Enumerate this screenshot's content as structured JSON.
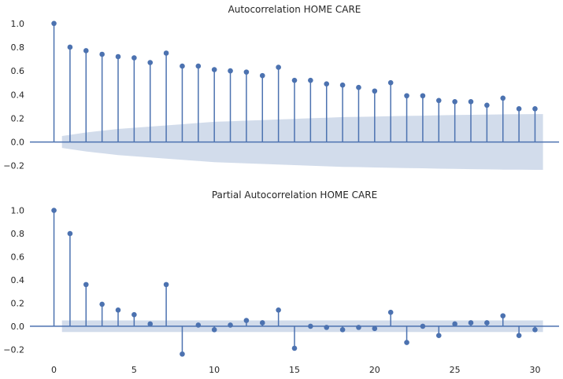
{
  "colors": {
    "accent": "#4c72b0",
    "band": "#c9d3e6",
    "text": "#262626"
  },
  "chart_data": [
    {
      "type": "stem",
      "title": "Autocorrelation HOME CARE",
      "xlim": [
        -1.5,
        31.5
      ],
      "ylim": [
        -0.235,
        1.065
      ],
      "yticks": [
        1.0,
        0.8,
        0.6,
        0.4,
        0.2,
        0.0,
        -0.2
      ],
      "ytick_labels": [
        "1.0",
        "0.8",
        "0.6",
        "0.4",
        "0.2",
        "0.0",
        "−0.2"
      ],
      "lags": [
        0,
        1,
        2,
        3,
        4,
        5,
        6,
        7,
        8,
        9,
        10,
        11,
        12,
        13,
        14,
        15,
        16,
        17,
        18,
        19,
        20,
        21,
        22,
        23,
        24,
        25,
        26,
        27,
        28,
        29,
        30
      ],
      "values": [
        1.0,
        0.8,
        0.77,
        0.74,
        0.72,
        0.71,
        0.67,
        0.75,
        0.64,
        0.64,
        0.61,
        0.6,
        0.59,
        0.56,
        0.63,
        0.52,
        0.52,
        0.49,
        0.48,
        0.46,
        0.43,
        0.5,
        0.39,
        0.39,
        0.35,
        0.34,
        0.34,
        0.31,
        0.37,
        0.28,
        0.28
      ],
      "confidence_band": {
        "lags": [
          0.5,
          1,
          2,
          3,
          4,
          5,
          6,
          7,
          8,
          9,
          10,
          11,
          12,
          13,
          14,
          15,
          16,
          17,
          18,
          19,
          20,
          21,
          22,
          23,
          24,
          25,
          26,
          27,
          28,
          29,
          30,
          30.5
        ],
        "upper": [
          0.05,
          0.06,
          0.08,
          0.095,
          0.11,
          0.12,
          0.13,
          0.14,
          0.15,
          0.16,
          0.17,
          0.175,
          0.18,
          0.185,
          0.19,
          0.195,
          0.2,
          0.205,
          0.21,
          0.212,
          0.215,
          0.218,
          0.22,
          0.222,
          0.225,
          0.227,
          0.229,
          0.231,
          0.233,
          0.234,
          0.235,
          0.235
        ]
      }
    },
    {
      "type": "stem",
      "title": "Partial Autocorrelation HOME CARE",
      "xlim": [
        -1.5,
        31.5
      ],
      "ylim": [
        -0.245,
        1.065
      ],
      "yticks": [
        1.0,
        0.8,
        0.6,
        0.4,
        0.2,
        0.0,
        -0.2
      ],
      "ytick_labels": [
        "1.0",
        "0.8",
        "0.6",
        "0.4",
        "0.2",
        "0.0",
        "−0.2"
      ],
      "xticks": [
        0,
        5,
        10,
        15,
        20,
        25,
        30
      ],
      "xtick_labels": [
        "0",
        "5",
        "10",
        "15",
        "20",
        "25",
        "30"
      ],
      "lags": [
        0,
        1,
        2,
        3,
        4,
        5,
        6,
        7,
        8,
        9,
        10,
        11,
        12,
        13,
        14,
        15,
        16,
        17,
        18,
        19,
        20,
        21,
        22,
        23,
        24,
        25,
        26,
        27,
        28,
        29,
        30
      ],
      "values": [
        1.0,
        0.8,
        0.36,
        0.19,
        0.14,
        0.1,
        0.02,
        0.36,
        -0.24,
        0.01,
        -0.03,
        0.01,
        0.05,
        0.03,
        0.14,
        -0.19,
        0.0,
        -0.01,
        -0.03,
        -0.01,
        -0.02,
        0.12,
        -0.14,
        0.0,
        -0.08,
        0.02,
        0.03,
        0.03,
        0.09,
        -0.08,
        -0.03
      ],
      "confidence_band": {
        "lags": [
          0.5,
          30.5
        ],
        "upper": [
          0.05,
          0.05
        ]
      }
    }
  ]
}
